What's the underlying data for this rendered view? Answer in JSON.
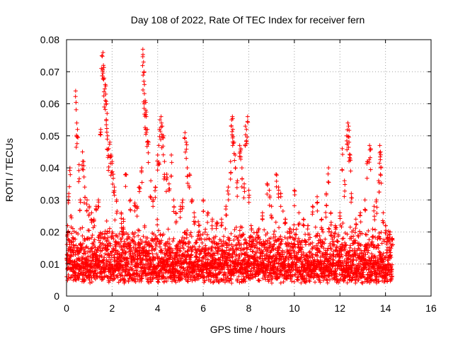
{
  "chart_data": {
    "type": "scatter",
    "title": "Day 108 of 2022, Rate Of TEC Index for receiver fern",
    "xlabel": "GPS time / hours",
    "ylabel": "ROTI / TECUs",
    "xlim": [
      0,
      16
    ],
    "ylim": [
      0,
      0.08
    ],
    "grid": true,
    "marker": "+",
    "color": "#ff0000",
    "x_ticks": [
      "0",
      "2",
      "4",
      "6",
      "8",
      "10",
      "12",
      "14",
      "16"
    ],
    "y_ticks": [
      "0",
      "0.01",
      "0.02",
      "0.03",
      "0.04",
      "0.05",
      "0.06",
      "0.07",
      "0.08"
    ],
    "data_extent_hours": [
      0,
      14.3
    ],
    "series": [
      {
        "name": "ROTI",
        "points": [
          [
            0.05,
            0.022
          ],
          [
            0.1,
            0.032
          ],
          [
            0.15,
            0.04
          ],
          [
            0.2,
            0.025
          ],
          [
            0.3,
            0.018
          ],
          [
            0.4,
            0.064
          ],
          [
            0.45,
            0.054
          ],
          [
            0.48,
            0.052
          ],
          [
            0.55,
            0.041
          ],
          [
            0.6,
            0.03
          ],
          [
            0.7,
            0.045
          ],
          [
            0.75,
            0.042
          ],
          [
            0.8,
            0.034
          ],
          [
            0.9,
            0.03
          ],
          [
            1.0,
            0.028
          ],
          [
            1.1,
            0.026
          ],
          [
            1.2,
            0.024
          ],
          [
            1.3,
            0.028
          ],
          [
            1.4,
            0.03
          ],
          [
            1.5,
            0.052
          ],
          [
            1.55,
            0.075
          ],
          [
            1.6,
            0.076
          ],
          [
            1.62,
            0.072
          ],
          [
            1.65,
            0.068
          ],
          [
            1.7,
            0.066
          ],
          [
            1.72,
            0.063
          ],
          [
            1.75,
            0.06
          ],
          [
            1.78,
            0.057
          ],
          [
            1.8,
            0.05
          ],
          [
            1.85,
            0.046
          ],
          [
            1.9,
            0.048
          ],
          [
            1.95,
            0.044
          ],
          [
            2.0,
            0.042
          ],
          [
            2.05,
            0.038
          ],
          [
            2.1,
            0.034
          ],
          [
            2.2,
            0.03
          ],
          [
            2.4,
            0.026
          ],
          [
            2.5,
            0.024
          ],
          [
            2.6,
            0.038
          ],
          [
            2.8,
            0.03
          ],
          [
            3.0,
            0.029
          ],
          [
            3.1,
            0.028
          ],
          [
            3.2,
            0.034
          ],
          [
            3.3,
            0.04
          ],
          [
            3.35,
            0.077
          ],
          [
            3.38,
            0.073
          ],
          [
            3.4,
            0.07
          ],
          [
            3.42,
            0.066
          ],
          [
            3.45,
            0.061
          ],
          [
            3.48,
            0.058
          ],
          [
            3.5,
            0.056
          ],
          [
            3.55,
            0.052
          ],
          [
            3.6,
            0.048
          ],
          [
            3.7,
            0.036
          ],
          [
            3.8,
            0.03
          ],
          [
            3.9,
            0.034
          ],
          [
            4.0,
            0.044
          ],
          [
            4.05,
            0.047
          ],
          [
            4.1,
            0.055
          ],
          [
            4.15,
            0.056
          ],
          [
            4.2,
            0.053
          ],
          [
            4.25,
            0.05
          ],
          [
            4.3,
            0.042
          ],
          [
            4.4,
            0.038
          ],
          [
            4.5,
            0.035
          ],
          [
            4.6,
            0.044
          ],
          [
            4.7,
            0.03
          ],
          [
            4.8,
            0.026
          ],
          [
            5.0,
            0.028
          ],
          [
            5.1,
            0.03
          ],
          [
            5.2,
            0.051
          ],
          [
            5.25,
            0.048
          ],
          [
            5.3,
            0.04
          ],
          [
            5.4,
            0.038
          ],
          [
            5.5,
            0.03
          ],
          [
            5.6,
            0.026
          ],
          [
            5.8,
            0.022
          ],
          [
            6.0,
            0.03
          ],
          [
            6.2,
            0.026
          ],
          [
            6.4,
            0.024
          ],
          [
            6.6,
            0.023
          ],
          [
            6.8,
            0.024
          ],
          [
            7.0,
            0.028
          ],
          [
            7.1,
            0.034
          ],
          [
            7.2,
            0.042
          ],
          [
            7.25,
            0.055
          ],
          [
            7.28,
            0.056
          ],
          [
            7.3,
            0.052
          ],
          [
            7.35,
            0.048
          ],
          [
            7.4,
            0.044
          ],
          [
            7.5,
            0.036
          ],
          [
            7.6,
            0.047
          ],
          [
            7.65,
            0.046
          ],
          [
            7.7,
            0.04
          ],
          [
            7.8,
            0.035
          ],
          [
            7.85,
            0.053
          ],
          [
            7.9,
            0.052
          ],
          [
            7.95,
            0.056
          ],
          [
            8.0,
            0.033
          ],
          [
            8.1,
            0.022
          ],
          [
            8.4,
            0.02
          ],
          [
            8.6,
            0.026
          ],
          [
            8.8,
            0.035
          ],
          [
            8.9,
            0.033
          ],
          [
            9.0,
            0.028
          ],
          [
            9.2,
            0.038
          ],
          [
            9.3,
            0.034
          ],
          [
            9.4,
            0.032
          ],
          [
            9.6,
            0.024
          ],
          [
            9.8,
            0.021
          ],
          [
            10.0,
            0.033
          ],
          [
            10.2,
            0.026
          ],
          [
            10.4,
            0.024
          ],
          [
            10.6,
            0.022
          ],
          [
            10.8,
            0.028
          ],
          [
            11.0,
            0.031
          ],
          [
            11.2,
            0.024
          ],
          [
            11.4,
            0.032
          ],
          [
            11.5,
            0.04
          ],
          [
            11.6,
            0.026
          ],
          [
            11.8,
            0.022
          ],
          [
            12.0,
            0.026
          ],
          [
            12.1,
            0.046
          ],
          [
            12.2,
            0.036
          ],
          [
            12.3,
            0.05
          ],
          [
            12.35,
            0.054
          ],
          [
            12.38,
            0.053
          ],
          [
            12.4,
            0.048
          ],
          [
            12.45,
            0.044
          ],
          [
            12.5,
            0.032
          ],
          [
            12.7,
            0.024
          ],
          [
            12.9,
            0.026
          ],
          [
            13.1,
            0.03
          ],
          [
            13.2,
            0.042
          ],
          [
            13.3,
            0.047
          ],
          [
            13.35,
            0.046
          ],
          [
            13.5,
            0.028
          ],
          [
            13.6,
            0.03
          ],
          [
            13.7,
            0.036
          ],
          [
            13.75,
            0.047
          ],
          [
            13.78,
            0.045
          ],
          [
            13.8,
            0.04
          ],
          [
            13.9,
            0.026
          ],
          [
            14.0,
            0.022
          ],
          [
            14.1,
            0.019
          ],
          [
            14.2,
            0.02
          ],
          [
            14.3,
            0.018
          ]
        ]
      }
    ]
  }
}
